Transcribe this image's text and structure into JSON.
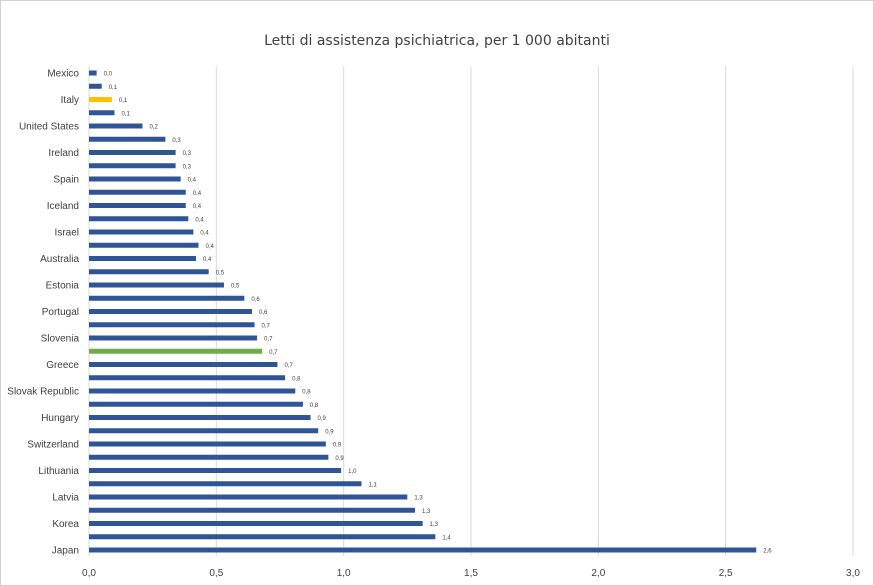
{
  "chart_data": {
    "type": "bar",
    "orientation": "horizontal",
    "title": "Letti di assistenza psichiatrica, per 1 000 abitanti",
    "xlabel": "",
    "ylabel": "",
    "xlim": [
      0,
      3.0
    ],
    "x_ticks": [
      "0,0",
      "0,5",
      "1,0",
      "1,5",
      "2,0",
      "2,5",
      "3,0"
    ],
    "grid": "vertical",
    "colors": {
      "default": "#2f5597",
      "highlight_italy": "#ffc000",
      "highlight_average": "#70ad47"
    },
    "bars": [
      {
        "label": "Mexico",
        "value": 0.03,
        "value_label": "0,0",
        "color": "default"
      },
      {
        "label": "",
        "value": 0.05,
        "value_label": "0,1",
        "color": "default"
      },
      {
        "label": "Italy",
        "value": 0.09,
        "value_label": "0,1",
        "color": "highlight_italy"
      },
      {
        "label": "",
        "value": 0.1,
        "value_label": "0,1",
        "color": "default"
      },
      {
        "label": "United States",
        "value": 0.21,
        "value_label": "0,2",
        "color": "default"
      },
      {
        "label": "",
        "value": 0.3,
        "value_label": "0,3",
        "color": "default"
      },
      {
        "label": "Ireland",
        "value": 0.34,
        "value_label": "0,3",
        "color": "default"
      },
      {
        "label": "",
        "value": 0.34,
        "value_label": "0,3",
        "color": "default"
      },
      {
        "label": "Spain",
        "value": 0.36,
        "value_label": "0,4",
        "color": "default"
      },
      {
        "label": "",
        "value": 0.38,
        "value_label": "0,4",
        "color": "default"
      },
      {
        "label": "Iceland",
        "value": 0.38,
        "value_label": "0,4",
        "color": "default"
      },
      {
        "label": "",
        "value": 0.39,
        "value_label": "0,4",
        "color": "default"
      },
      {
        "label": "Israel",
        "value": 0.41,
        "value_label": "0,4",
        "color": "default"
      },
      {
        "label": "",
        "value": 0.43,
        "value_label": "0,4",
        "color": "default"
      },
      {
        "label": "Australia",
        "value": 0.42,
        "value_label": "0,4",
        "color": "default"
      },
      {
        "label": "",
        "value": 0.47,
        "value_label": "0,5",
        "color": "default"
      },
      {
        "label": "Estonia",
        "value": 0.53,
        "value_label": "0,5",
        "color": "default"
      },
      {
        "label": "",
        "value": 0.61,
        "value_label": "0,6",
        "color": "default"
      },
      {
        "label": "Portugal",
        "value": 0.64,
        "value_label": "0,6",
        "color": "default"
      },
      {
        "label": "",
        "value": 0.65,
        "value_label": "0,7",
        "color": "default"
      },
      {
        "label": "Slovenia",
        "value": 0.66,
        "value_label": "0,7",
        "color": "default"
      },
      {
        "label": "",
        "value": 0.68,
        "value_label": "0,7",
        "color": "highlight_average"
      },
      {
        "label": "Greece",
        "value": 0.74,
        "value_label": "0,7",
        "color": "default"
      },
      {
        "label": "",
        "value": 0.77,
        "value_label": "0,8",
        "color": "default"
      },
      {
        "label": "Slovak Republic",
        "value": 0.81,
        "value_label": "0,8",
        "color": "default"
      },
      {
        "label": "",
        "value": 0.84,
        "value_label": "0,8",
        "color": "default"
      },
      {
        "label": "Hungary",
        "value": 0.87,
        "value_label": "0,9",
        "color": "default"
      },
      {
        "label": "",
        "value": 0.9,
        "value_label": "0,9",
        "color": "default"
      },
      {
        "label": "Switzerland",
        "value": 0.93,
        "value_label": "0,9",
        "color": "default"
      },
      {
        "label": "",
        "value": 0.94,
        "value_label": "0,9",
        "color": "default"
      },
      {
        "label": "Lithuania",
        "value": 0.99,
        "value_label": "1,0",
        "color": "default"
      },
      {
        "label": "",
        "value": 1.07,
        "value_label": "1,1",
        "color": "default"
      },
      {
        "label": "Latvia",
        "value": 1.25,
        "value_label": "1,3",
        "color": "default"
      },
      {
        "label": "",
        "value": 1.28,
        "value_label": "1,3",
        "color": "default"
      },
      {
        "label": "Korea",
        "value": 1.31,
        "value_label": "1,3",
        "color": "default"
      },
      {
        "label": "",
        "value": 1.36,
        "value_label": "1,4",
        "color": "default"
      },
      {
        "label": "Japan",
        "value": 2.62,
        "value_label": "2,6",
        "color": "default"
      }
    ]
  }
}
